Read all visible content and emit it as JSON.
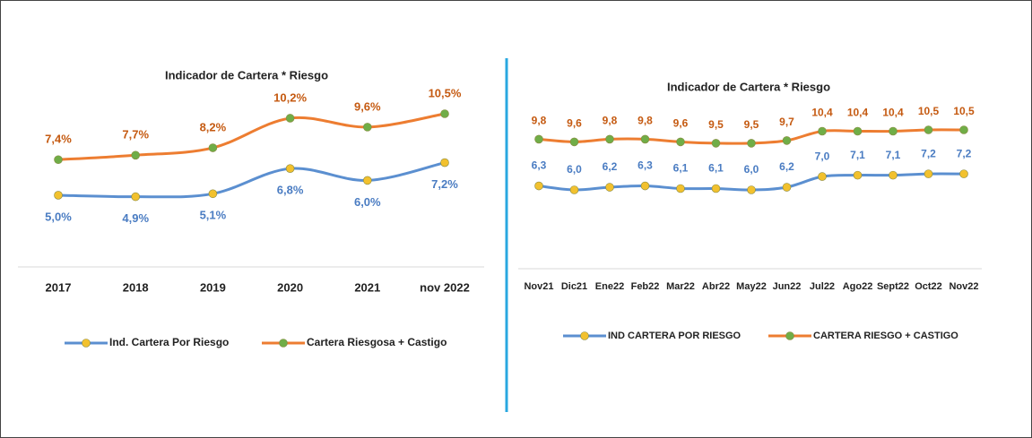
{
  "chart_data": [
    {
      "type": "line",
      "title": "Indicador de Cartera * Riesgo",
      "categories": [
        "2017",
        "2018",
        "2019",
        "2020",
        "2021",
        "nov 2022"
      ],
      "series": [
        {
          "name": "Ind. Cartera Por Riesgo",
          "color": "#5b8fd0",
          "marker_color": "#f2c12e",
          "values": [
            5.0,
            4.9,
            5.1,
            6.8,
            6.0,
            7.2
          ],
          "value_labels": [
            "5,0%",
            "4,9%",
            "5,1%",
            "6,8%",
            "6,0%",
            "7,2%"
          ]
        },
        {
          "name": "Cartera Riesgosa + Castigo",
          "color": "#ed7d31",
          "marker_color": "#70ad47",
          "values": [
            7.4,
            7.7,
            8.2,
            10.2,
            9.6,
            10.5
          ],
          "value_labels": [
            "7,4%",
            "7,7%",
            "8,2%",
            "10,2%",
            "9,6%",
            "10,5%"
          ]
        }
      ]
    },
    {
      "type": "line",
      "title": "Indicador de Cartera * Riesgo",
      "categories": [
        "Nov21",
        "Dic21",
        "Ene22",
        "Feb22",
        "Mar22",
        "Abr22",
        "May22",
        "Jun22",
        "Jul22",
        "Ago22",
        "Sept22",
        "Oct22",
        "Nov22"
      ],
      "series": [
        {
          "name": "IND CARTERA POR RIESGO",
          "color": "#5b8fd0",
          "marker_color": "#f2c12e",
          "values": [
            6.3,
            6.0,
            6.2,
            6.3,
            6.1,
            6.1,
            6.0,
            6.2,
            7.0,
            7.1,
            7.1,
            7.2,
            7.2
          ],
          "value_labels": [
            "6,3",
            "6,0",
            "6,2",
            "6,3",
            "6,1",
            "6,1",
            "6,0",
            "6,2",
            "7,0",
            "7,1",
            "7,1",
            "7,2",
            "7,2"
          ]
        },
        {
          "name": "CARTERA RIESGO + CASTIGO",
          "color": "#ed7d31",
          "marker_color": "#70ad47",
          "values": [
            9.8,
            9.6,
            9.8,
            9.8,
            9.6,
            9.5,
            9.5,
            9.7,
            10.4,
            10.4,
            10.4,
            10.5,
            10.5
          ],
          "value_labels": [
            "9,8",
            "9,6",
            "9,8",
            "9,8",
            "9,6",
            "9,5",
            "9,5",
            "9,7",
            "10,4",
            "10,4",
            "10,4",
            "10,5",
            "10,5"
          ]
        }
      ]
    }
  ]
}
